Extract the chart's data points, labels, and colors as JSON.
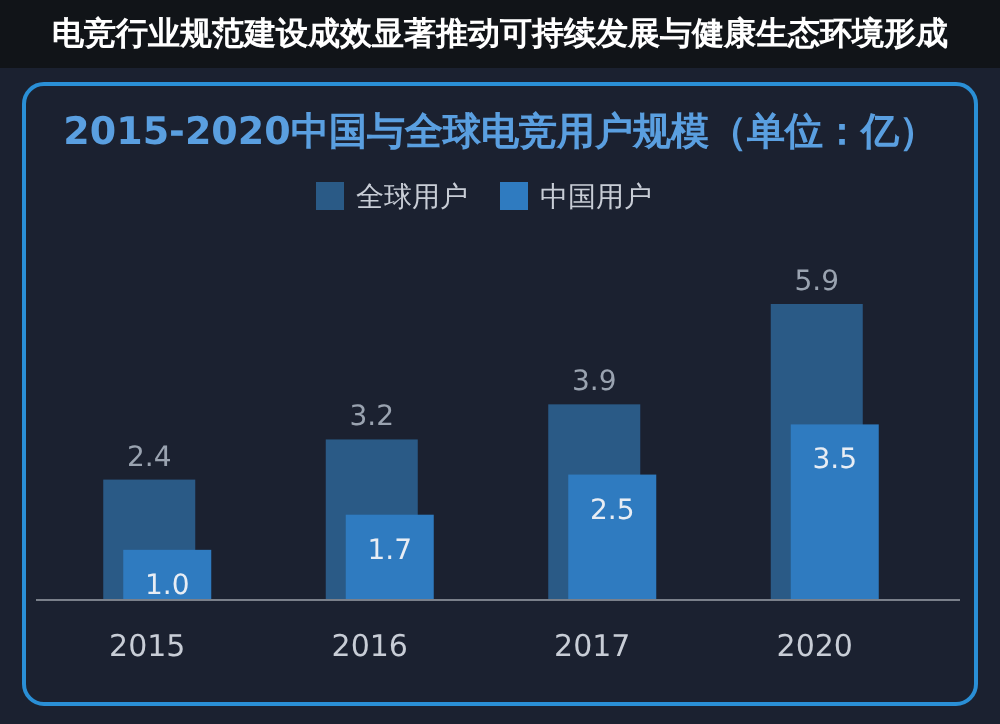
{
  "chart_data": {
    "type": "bar",
    "title": "2015-2020中国与全球电竞用户规模（单位：亿）",
    "categories": [
      "2015",
      "2016",
      "2017",
      "2020"
    ],
    "series": [
      {
        "name": "全球用户",
        "color": "#2a5a86",
        "values": [
          2.4,
          3.2,
          3.9,
          5.9
        ],
        "value_labels": [
          "2.4",
          "3.2",
          "3.9",
          "5.9"
        ]
      },
      {
        "name": "中国用户",
        "color": "#2f7bc0",
        "values": [
          1.0,
          1.7,
          2.5,
          3.5
        ],
        "value_labels": [
          "1.0",
          "1.7",
          "2.5",
          "3.5"
        ]
      }
    ],
    "legend": "top",
    "annotations": [
      "电竞行业规范建设成效显著推动可持续发展与健康生态环境形成"
    ]
  }
}
